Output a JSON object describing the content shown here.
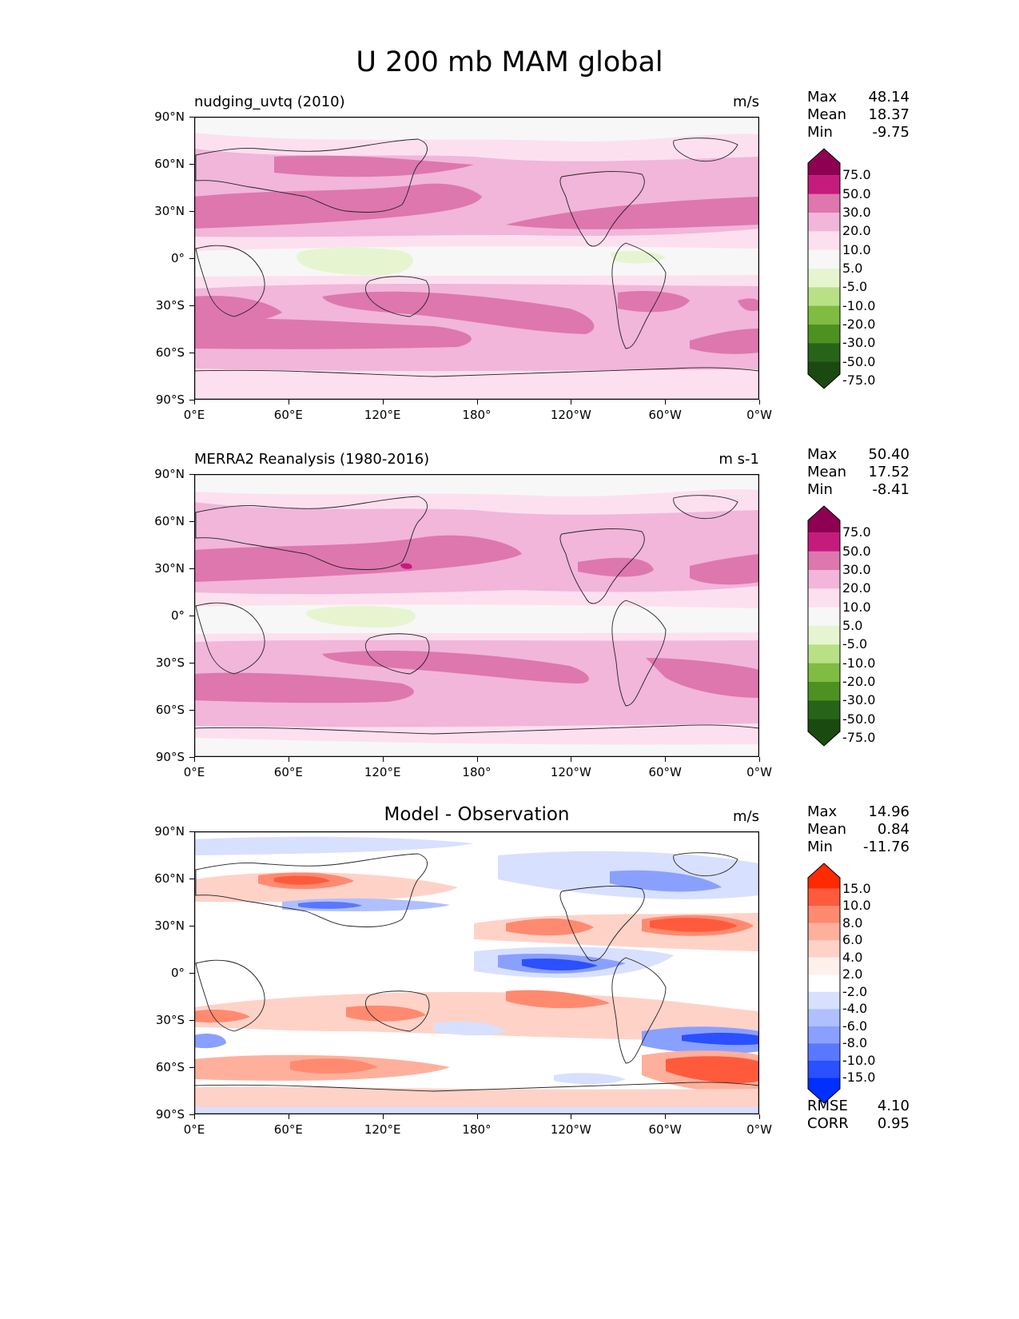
{
  "figure": {
    "title": "U 200 mb MAM global",
    "lat_ticks": [
      "90°N",
      "60°N",
      "30°N",
      "0°",
      "30°S",
      "60°S",
      "90°S"
    ],
    "lon_ticks": [
      "0°E",
      "60°E",
      "120°E",
      "180°",
      "120°W",
      "60°W",
      "0°W"
    ]
  },
  "panels": [
    {
      "title": "nudging_uvtq (2010)",
      "units": "m/s",
      "stats": {
        "max_label": "Max",
        "max": "48.14",
        "mean_label": "Mean",
        "mean": "18.37",
        "min_label": "Min",
        "min": "-9.75"
      },
      "colorbar": {
        "levels": [
          "75.0",
          "50.0",
          "30.0",
          "20.0",
          "10.0",
          "5.0",
          "-5.0",
          "-10.0",
          "-20.0",
          "-30.0",
          "-50.0",
          "-75.0"
        ],
        "colors": [
          "#8e0152",
          "#c51b7d",
          "#de77ae",
          "#f1b6da",
          "#fde0ef",
          "#f7f7f7",
          "#e6f5d0",
          "#b8e186",
          "#7fbc41",
          "#4d9221",
          "#276419",
          "#1b4a10"
        ]
      }
    },
    {
      "title": "MERRA2 Reanalysis (1980-2016)",
      "units": "m s-1",
      "stats": {
        "max_label": "Max",
        "max": "50.40",
        "mean_label": "Mean",
        "mean": "17.52",
        "min_label": "Min",
        "min": "-8.41"
      },
      "colorbar": {
        "levels": [
          "75.0",
          "50.0",
          "30.0",
          "20.0",
          "10.0",
          "5.0",
          "-5.0",
          "-10.0",
          "-20.0",
          "-30.0",
          "-50.0",
          "-75.0"
        ],
        "colors": [
          "#8e0152",
          "#c51b7d",
          "#de77ae",
          "#f1b6da",
          "#fde0ef",
          "#f7f7f7",
          "#e6f5d0",
          "#b8e186",
          "#7fbc41",
          "#4d9221",
          "#276419",
          "#1b4a10"
        ]
      }
    },
    {
      "title": "Model - Observation",
      "units": "m/s",
      "stats": {
        "max_label": "Max",
        "max": "14.96",
        "mean_label": "Mean",
        "mean": "0.84",
        "min_label": "Min",
        "min": "-11.76"
      },
      "metrics": {
        "rmse_label": "RMSE",
        "rmse": "4.10",
        "corr_label": "CORR",
        "corr": "0.95"
      },
      "colorbar": {
        "levels": [
          "15.0",
          "10.0",
          "8.0",
          "6.0",
          "4.0",
          "2.0",
          "-2.0",
          "-4.0",
          "-6.0",
          "-8.0",
          "-10.0",
          "-15.0"
        ],
        "colors": [
          "#ff2a00",
          "#ff5a3c",
          "#ff8a70",
          "#ffb09c",
          "#ffd2c8",
          "#fff0ec",
          "#ffffff",
          "#d8e0ff",
          "#b0c0ff",
          "#8aa0ff",
          "#5a78ff",
          "#2a50ff",
          "#0030ff"
        ]
      }
    }
  ]
}
